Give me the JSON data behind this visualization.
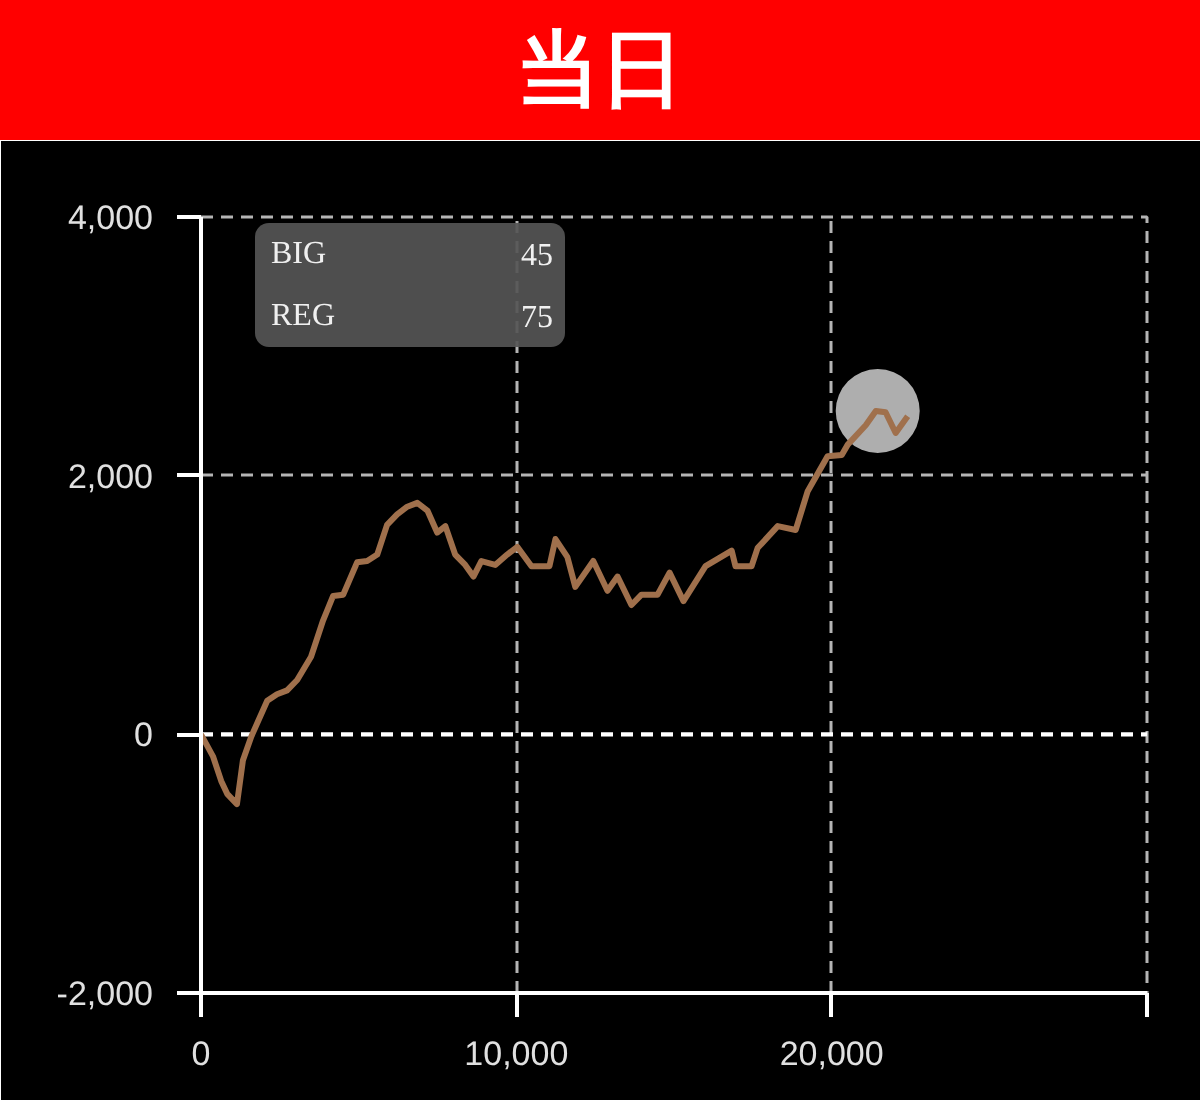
{
  "chart_data": {
    "type": "line",
    "title": "当日",
    "annotations": [
      "BIG",
      "45",
      "REG",
      "75"
    ],
    "xlim": [
      0,
      30000
    ],
    "ylim": [
      -2000,
      4000
    ],
    "xticks": [
      0,
      {
        "value": 10000,
        "label": "10,000"
      },
      {
        "value": 20000,
        "label": "20,000"
      },
      {
        "value": 30000,
        "label": null
      }
    ],
    "yticks": [
      {
        "value": -2000,
        "label": "-2,000"
      },
      0,
      {
        "value": 2000,
        "label": "2,000"
      },
      {
        "value": 4000,
        "label": "4,000"
      }
    ],
    "grid": true,
    "ref_lines": [
      {
        "axis": "y",
        "value": 0,
        "color": "#ffffff",
        "line_style": "dashed"
      }
    ],
    "series": [
      {
        "color": "#a0704c",
        "x": [
          0,
          380,
          640,
          830,
          1140,
          1330,
          1590,
          2100,
          2410,
          2730,
          3050,
          3490,
          3870,
          4190,
          4510,
          4950,
          5270,
          5590,
          5900,
          6220,
          6540,
          6860,
          7180,
          7490,
          7750,
          8060,
          8380,
          8640,
          8890,
          9330,
          9710,
          10030,
          10480,
          11050,
          11240,
          11620,
          11870,
          12440,
          12890,
          13210,
          13650,
          13970,
          14480,
          14860,
          15300,
          16000,
          16830,
          16950,
          17460,
          17650,
          18290,
          18860,
          19240,
          19870,
          20320,
          20510,
          21080,
          21400,
          21710,
          22030,
          22410
        ],
        "values": [
          0,
          -170,
          -360,
          -460,
          -540,
          -200,
          -20,
          260,
          310,
          340,
          420,
          600,
          880,
          1070,
          1080,
          1330,
          1340,
          1390,
          1620,
          1700,
          1760,
          1790,
          1730,
          1560,
          1610,
          1390,
          1310,
          1220,
          1340,
          1310,
          1390,
          1450,
          1300,
          1300,
          1510,
          1370,
          1140,
          1340,
          1110,
          1220,
          1000,
          1080,
          1080,
          1250,
          1030,
          1300,
          1420,
          1300,
          1300,
          1440,
          1610,
          1580,
          1880,
          2150,
          2160,
          2240,
          2390,
          2500,
          2490,
          2330,
          2460
        ]
      },
      {
        "type": "scatter",
        "marker": "circle",
        "color": "#cccccc",
        "x": [
          21460
        ],
        "values": [
          2500
        ]
      }
    ]
  }
}
